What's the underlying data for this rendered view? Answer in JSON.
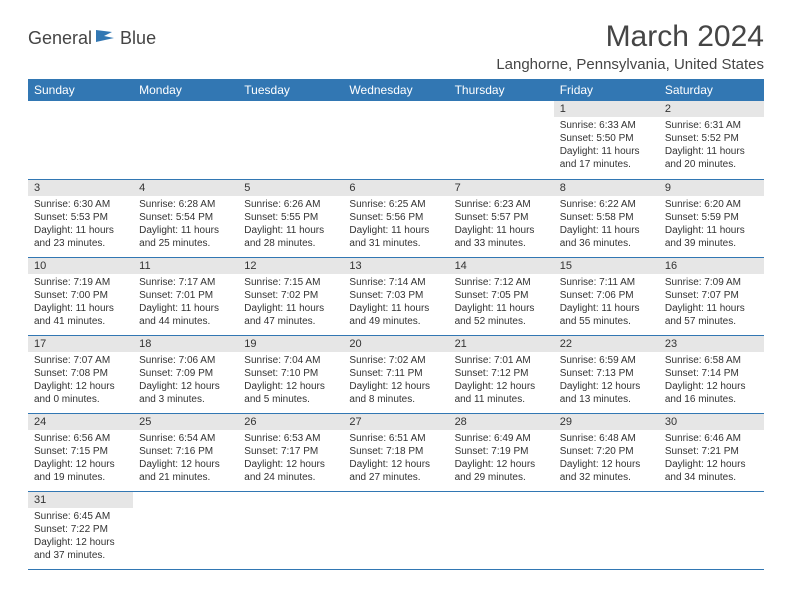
{
  "logo": {
    "word1": "General",
    "word2": "Blue"
  },
  "title": "March 2024",
  "location": "Langhorne, Pennsylvania, United States",
  "colors": {
    "header_bg": "#3277b3",
    "header_text": "#ffffff",
    "daynum_bg": "#e6e6e6",
    "body_text": "#333333",
    "title_text": "#454545",
    "rule": "#3277b3"
  },
  "weekdays": [
    "Sunday",
    "Monday",
    "Tuesday",
    "Wednesday",
    "Thursday",
    "Friday",
    "Saturday"
  ],
  "rows": [
    [
      null,
      null,
      null,
      null,
      null,
      {
        "n": "1",
        "sr": "Sunrise: 6:33 AM",
        "ss": "Sunset: 5:50 PM",
        "d1": "Daylight: 11 hours",
        "d2": "and 17 minutes."
      },
      {
        "n": "2",
        "sr": "Sunrise: 6:31 AM",
        "ss": "Sunset: 5:52 PM",
        "d1": "Daylight: 11 hours",
        "d2": "and 20 minutes."
      }
    ],
    [
      {
        "n": "3",
        "sr": "Sunrise: 6:30 AM",
        "ss": "Sunset: 5:53 PM",
        "d1": "Daylight: 11 hours",
        "d2": "and 23 minutes."
      },
      {
        "n": "4",
        "sr": "Sunrise: 6:28 AM",
        "ss": "Sunset: 5:54 PM",
        "d1": "Daylight: 11 hours",
        "d2": "and 25 minutes."
      },
      {
        "n": "5",
        "sr": "Sunrise: 6:26 AM",
        "ss": "Sunset: 5:55 PM",
        "d1": "Daylight: 11 hours",
        "d2": "and 28 minutes."
      },
      {
        "n": "6",
        "sr": "Sunrise: 6:25 AM",
        "ss": "Sunset: 5:56 PM",
        "d1": "Daylight: 11 hours",
        "d2": "and 31 minutes."
      },
      {
        "n": "7",
        "sr": "Sunrise: 6:23 AM",
        "ss": "Sunset: 5:57 PM",
        "d1": "Daylight: 11 hours",
        "d2": "and 33 minutes."
      },
      {
        "n": "8",
        "sr": "Sunrise: 6:22 AM",
        "ss": "Sunset: 5:58 PM",
        "d1": "Daylight: 11 hours",
        "d2": "and 36 minutes."
      },
      {
        "n": "9",
        "sr": "Sunrise: 6:20 AM",
        "ss": "Sunset: 5:59 PM",
        "d1": "Daylight: 11 hours",
        "d2": "and 39 minutes."
      }
    ],
    [
      {
        "n": "10",
        "sr": "Sunrise: 7:19 AM",
        "ss": "Sunset: 7:00 PM",
        "d1": "Daylight: 11 hours",
        "d2": "and 41 minutes."
      },
      {
        "n": "11",
        "sr": "Sunrise: 7:17 AM",
        "ss": "Sunset: 7:01 PM",
        "d1": "Daylight: 11 hours",
        "d2": "and 44 minutes."
      },
      {
        "n": "12",
        "sr": "Sunrise: 7:15 AM",
        "ss": "Sunset: 7:02 PM",
        "d1": "Daylight: 11 hours",
        "d2": "and 47 minutes."
      },
      {
        "n": "13",
        "sr": "Sunrise: 7:14 AM",
        "ss": "Sunset: 7:03 PM",
        "d1": "Daylight: 11 hours",
        "d2": "and 49 minutes."
      },
      {
        "n": "14",
        "sr": "Sunrise: 7:12 AM",
        "ss": "Sunset: 7:05 PM",
        "d1": "Daylight: 11 hours",
        "d2": "and 52 minutes."
      },
      {
        "n": "15",
        "sr": "Sunrise: 7:11 AM",
        "ss": "Sunset: 7:06 PM",
        "d1": "Daylight: 11 hours",
        "d2": "and 55 minutes."
      },
      {
        "n": "16",
        "sr": "Sunrise: 7:09 AM",
        "ss": "Sunset: 7:07 PM",
        "d1": "Daylight: 11 hours",
        "d2": "and 57 minutes."
      }
    ],
    [
      {
        "n": "17",
        "sr": "Sunrise: 7:07 AM",
        "ss": "Sunset: 7:08 PM",
        "d1": "Daylight: 12 hours",
        "d2": "and 0 minutes."
      },
      {
        "n": "18",
        "sr": "Sunrise: 7:06 AM",
        "ss": "Sunset: 7:09 PM",
        "d1": "Daylight: 12 hours",
        "d2": "and 3 minutes."
      },
      {
        "n": "19",
        "sr": "Sunrise: 7:04 AM",
        "ss": "Sunset: 7:10 PM",
        "d1": "Daylight: 12 hours",
        "d2": "and 5 minutes."
      },
      {
        "n": "20",
        "sr": "Sunrise: 7:02 AM",
        "ss": "Sunset: 7:11 PM",
        "d1": "Daylight: 12 hours",
        "d2": "and 8 minutes."
      },
      {
        "n": "21",
        "sr": "Sunrise: 7:01 AM",
        "ss": "Sunset: 7:12 PM",
        "d1": "Daylight: 12 hours",
        "d2": "and 11 minutes."
      },
      {
        "n": "22",
        "sr": "Sunrise: 6:59 AM",
        "ss": "Sunset: 7:13 PM",
        "d1": "Daylight: 12 hours",
        "d2": "and 13 minutes."
      },
      {
        "n": "23",
        "sr": "Sunrise: 6:58 AM",
        "ss": "Sunset: 7:14 PM",
        "d1": "Daylight: 12 hours",
        "d2": "and 16 minutes."
      }
    ],
    [
      {
        "n": "24",
        "sr": "Sunrise: 6:56 AM",
        "ss": "Sunset: 7:15 PM",
        "d1": "Daylight: 12 hours",
        "d2": "and 19 minutes."
      },
      {
        "n": "25",
        "sr": "Sunrise: 6:54 AM",
        "ss": "Sunset: 7:16 PM",
        "d1": "Daylight: 12 hours",
        "d2": "and 21 minutes."
      },
      {
        "n": "26",
        "sr": "Sunrise: 6:53 AM",
        "ss": "Sunset: 7:17 PM",
        "d1": "Daylight: 12 hours",
        "d2": "and 24 minutes."
      },
      {
        "n": "27",
        "sr": "Sunrise: 6:51 AM",
        "ss": "Sunset: 7:18 PM",
        "d1": "Daylight: 12 hours",
        "d2": "and 27 minutes."
      },
      {
        "n": "28",
        "sr": "Sunrise: 6:49 AM",
        "ss": "Sunset: 7:19 PM",
        "d1": "Daylight: 12 hours",
        "d2": "and 29 minutes."
      },
      {
        "n": "29",
        "sr": "Sunrise: 6:48 AM",
        "ss": "Sunset: 7:20 PM",
        "d1": "Daylight: 12 hours",
        "d2": "and 32 minutes."
      },
      {
        "n": "30",
        "sr": "Sunrise: 6:46 AM",
        "ss": "Sunset: 7:21 PM",
        "d1": "Daylight: 12 hours",
        "d2": "and 34 minutes."
      }
    ],
    [
      {
        "n": "31",
        "sr": "Sunrise: 6:45 AM",
        "ss": "Sunset: 7:22 PM",
        "d1": "Daylight: 12 hours",
        "d2": "and 37 minutes."
      },
      null,
      null,
      null,
      null,
      null,
      null
    ]
  ]
}
